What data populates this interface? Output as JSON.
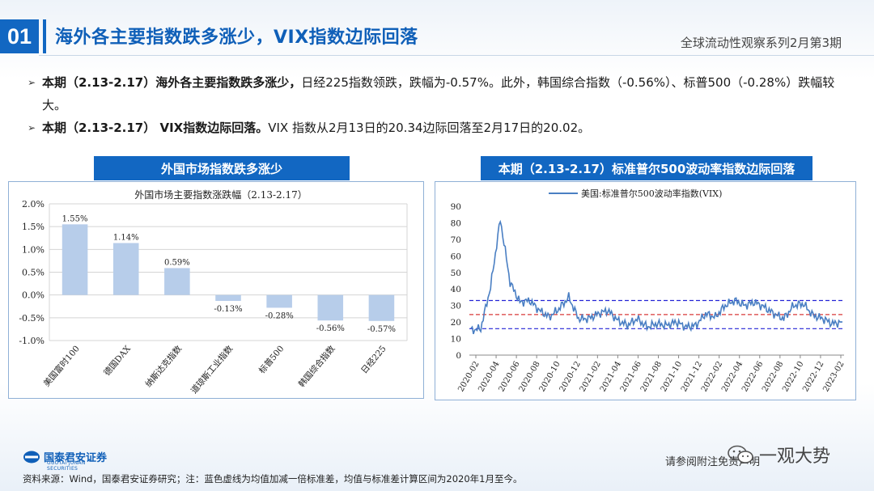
{
  "header": {
    "number": "01",
    "title": "海外各主要指数跌多涨少，VIX指数边际回落",
    "subtitle": "全球流动性观察系列2月第3期"
  },
  "bullets": [
    {
      "bold": "本期（2.13-2.17）海外各主要指数跌多涨少，",
      "text": "日经225指数领跌，跌幅为-0.57%。此外，韩国综合指数（-0.56%）、标普500（-0.28%）跌幅较大。"
    },
    {
      "bold": "本期（2.13-2.17） VIX指数边际回落。",
      "text": "VIX 指数从2月13日的20.34边际回落至2月17日的20.02。"
    }
  ],
  "panels": {
    "left_header": "外国市场指数跌多涨少",
    "right_header": "本期（2.13-2.17）标准普尔500波动率指数边际回落"
  },
  "chart_data": [
    {
      "type": "bar",
      "title": "外国市场主要指数涨跌幅（2.13-2.17）",
      "categories": [
        "美国富时100",
        "德国DAX",
        "纳斯达克指数",
        "道琼斯工业指数",
        "标普500",
        "韩国综合指数",
        "日经225"
      ],
      "values": [
        1.55,
        1.14,
        0.59,
        -0.13,
        -0.28,
        -0.56,
        -0.57
      ],
      "data_labels": [
        "1.55%",
        "1.14%",
        "0.59%",
        "-0.13%",
        "-0.28%",
        "-0.56%",
        "-0.57%"
      ],
      "ylim": [
        -1.0,
        2.0
      ],
      "yticks": [
        "2.0%",
        "1.5%",
        "1.0%",
        "0.5%",
        "0.0%",
        "-0.5%",
        "-1.0%"
      ],
      "grid": true,
      "colors": {
        "bar": "#b7cdea"
      }
    },
    {
      "type": "line",
      "legend": "美国:标准普尔500波动率指数(VIX)",
      "legend_position": "top",
      "ylim": [
        0,
        90
      ],
      "yticks": [
        "90",
        "80",
        "70",
        "60",
        "50",
        "40",
        "30",
        "20",
        "10",
        "0"
      ],
      "xticks": [
        "2020-02",
        "2020-04",
        "2020-06",
        "2020-08",
        "2020-10",
        "2020-12",
        "2021-02",
        "2021-04",
        "2021-06",
        "2021-08",
        "2021-10",
        "2021-12",
        "2022-02",
        "2022-04",
        "2022-06",
        "2022-08",
        "2022-10",
        "2022-12",
        "2023-02"
      ],
      "x": [
        "2020-01",
        "2020-02",
        "2020-03a",
        "2020-03b",
        "2020-04",
        "2020-05",
        "2020-06",
        "2020-07",
        "2020-08",
        "2020-09",
        "2020-10",
        "2020-11",
        "2020-12",
        "2021-01",
        "2021-02",
        "2021-03",
        "2021-04",
        "2021-05",
        "2021-06",
        "2021-07",
        "2021-08",
        "2021-09",
        "2021-10",
        "2021-11",
        "2021-12",
        "2022-01",
        "2022-02",
        "2022-03",
        "2022-04",
        "2022-05",
        "2022-06",
        "2022-07",
        "2022-08",
        "2022-09",
        "2022-10",
        "2022-11",
        "2022-12",
        "2023-01",
        "2023-02"
      ],
      "values": [
        15,
        16,
        41,
        82,
        44,
        32,
        33,
        27,
        23,
        28,
        35,
        22,
        22,
        25,
        27,
        21,
        18,
        22,
        17,
        19,
        18,
        20,
        17,
        18,
        25,
        23,
        30,
        33,
        30,
        32,
        29,
        25,
        22,
        30,
        31,
        24,
        22,
        19,
        20
      ],
      "mean": 24.5,
      "mean_plus_sd": 33.0,
      "mean_minus_sd": 16.0,
      "colors": {
        "line": "#4a7fc3",
        "mean": "#d93a3a",
        "band": "#2424d6"
      }
    }
  ],
  "footer": {
    "logo_cn": "国泰君安证券",
    "logo_en": "GUOTAI JUNAN SECURITIES",
    "notice": "请参阅附注免责声明",
    "watermark": "一观大势",
    "source": "资料来源：Wind，国泰君安证券研究；注：蓝色虚线为均值加减一倍标准差，均值与标准差计算区间为2020年1月至今。"
  }
}
